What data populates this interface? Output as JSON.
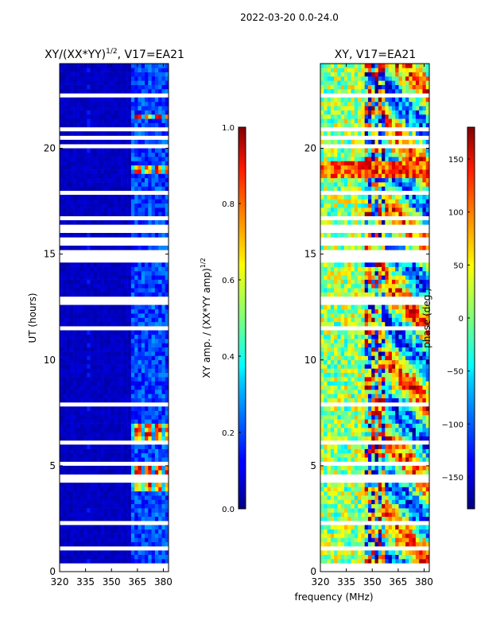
{
  "suptitle": "2022-03-20 0.0-24.0",
  "xlabel": "frequency (MHz)",
  "chart_data": [
    {
      "type": "heatmap",
      "title": "XY/(XX*YY)^1/2, V17=EA21",
      "title_main": "XY/(XX*YY)",
      "title_sup": "1/2",
      "title_tail": ", V17=EA21",
      "xlabel": "frequency (MHz)",
      "ylabel": "UT (hours)",
      "xlim": [
        320,
        383
      ],
      "ylim": [
        0,
        24
      ],
      "xticks": [
        "320",
        "335",
        "350",
        "365",
        "380"
      ],
      "yticks": [
        "0",
        "5",
        "10",
        "15",
        "20"
      ],
      "colorbar": {
        "label": "XY amp. / (XX*YY amp)^1/2",
        "label_main": "XY amp. / (XX*YY amp)",
        "label_sup": "1/2",
        "range": [
          0.0,
          1.0
        ],
        "ticks": [
          "0.0",
          "0.2",
          "0.4",
          "0.6",
          "0.8",
          "1.0"
        ],
        "colormap": "jet"
      },
      "data_note": "Normalized cross-correlation amplitude; mostly low (~0.05) with hot bands near 362-380 MHz around 4-5 h, 6-7 h, 19 h and 21.5 h; blank rows are flagged."
    },
    {
      "type": "heatmap",
      "title": "XY, V17=EA21",
      "xlabel": "frequency (MHz)",
      "ylabel": "",
      "xlim": [
        320,
        383
      ],
      "ylim": [
        0,
        24
      ],
      "xticks": [
        "320",
        "335",
        "350",
        "365",
        "380"
      ],
      "yticks": [
        "0",
        "5",
        "10",
        "15",
        "20"
      ],
      "colorbar": {
        "label": "phase (deg.)",
        "range": [
          -180,
          180
        ],
        "ticks": [
          "-150",
          "-100",
          "-50",
          "0",
          "50",
          "100",
          "150"
        ],
        "colormap": "jet"
      },
      "data_note": "Cross-correlation phase, noisy across band with coherent structure above ~360 MHz; blank rows are flagged."
    }
  ]
}
